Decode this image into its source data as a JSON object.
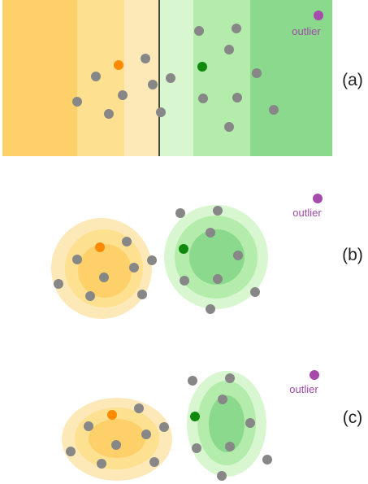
{
  "panels": [
    {
      "id": "a",
      "label": "(a)",
      "outlier_text": "outlier"
    },
    {
      "id": "b",
      "label": "(b)",
      "outlier_text": "outlier"
    },
    {
      "id": "c",
      "label": "(c)",
      "outlier_text": "outlier"
    }
  ],
  "colors": {
    "orange_shades": [
      "#fdd06a",
      "#fde090",
      "#fde8b8"
    ],
    "green_shades": [
      "#d8f7d0",
      "#b4ecac",
      "#8ad98c"
    ],
    "boundary_line": "#111111",
    "point_gray": "#878787",
    "point_orange": "#ff8a00",
    "point_green": "#0f8a0f",
    "point_outlier": "#a64aab"
  }
}
